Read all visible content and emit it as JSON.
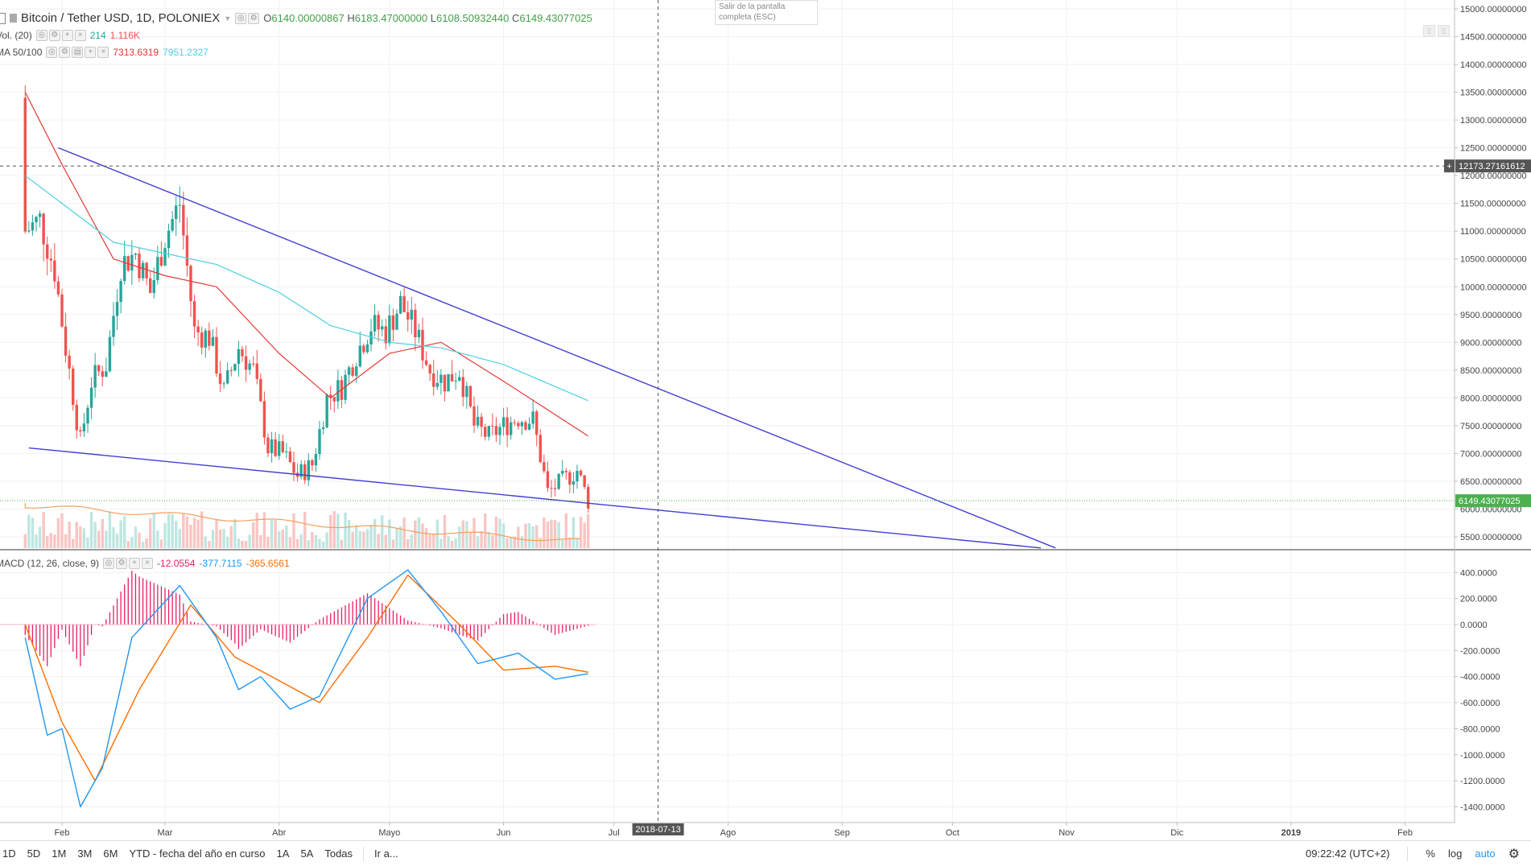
{
  "symbol": {
    "title": "Bitcoin / Tether USD, 1D, POLONIEX",
    "open_label": "O",
    "open": "6140.00000867",
    "high_label": "H",
    "high": "6183.47000000",
    "low_label": "L",
    "low": "6108.50932440",
    "close_label": "C",
    "close": "6149.43077025"
  },
  "volume_legend": {
    "name": "Vol. (20)",
    "v1": "214",
    "v2": "1.116K"
  },
  "ma_legend": {
    "name": "MA 50/100",
    "v1": "7313.6319",
    "v2": "7951.2327"
  },
  "macd_legend": {
    "name": "MACD (12, 26, close, 9)",
    "v1": "-12.0554",
    "v2": "-377.7115",
    "v3": "-365.6561"
  },
  "tooltip": {
    "line1": "Salir de la pantalla",
    "line2": "completa (ESC)"
  },
  "crosshair": {
    "price_label": "12173.27161612",
    "date_label": "2018-07-13"
  },
  "last_price_label": "6149.43077025",
  "colors": {
    "up": "#26a69a",
    "down": "#ef5350",
    "ma50": "#e53935",
    "ma100": "#4dd0e1",
    "trendline": "#3f3fd4",
    "macd": "#2196f3",
    "signal": "#ff6d00",
    "hist": "#e91e63",
    "crosshair": "#555555",
    "last_price": "#4caf50"
  },
  "bottom_bar": {
    "ranges": [
      "1D",
      "5D",
      "1M",
      "3M",
      "6M",
      "YTD - fecha del año en curso",
      "1A",
      "5A",
      "Todas"
    ],
    "goto": "Ir a...",
    "time": "09:22:42 (UTC+2)",
    "percent": "%",
    "log": "log",
    "auto": "auto",
    "settings_icon": "gear-icon"
  },
  "chart_data": {
    "type": "candlestick",
    "title": "Bitcoin / Tether USD, 1D, POLONIEX",
    "xlabel": "",
    "ylabel": "",
    "x_tick_labels": [
      "Feb",
      "Mar",
      "Abr",
      "Mayo",
      "Jun",
      "Jul",
      "Ago",
      "Sep",
      "Oct",
      "Nov",
      "Dic",
      "2019",
      "Feb"
    ],
    "price_axis": {
      "ylim": [
        5300,
        15100
      ],
      "tick_labels": [
        "15000.00000000",
        "14500.00000000",
        "14000.00000000",
        "13500.00000000",
        "13000.00000000",
        "12500.00000000",
        "12000.00000000",
        "11500.00000000",
        "11000.00000000",
        "10500.00000000",
        "10000.00000000",
        "9500.00000000",
        "9000.00000000",
        "8500.00000000",
        "8000.00000000",
        "7500.00000000",
        "7000.00000000",
        "6500.00000000",
        "6000.00000000",
        "5500.00000000"
      ]
    },
    "macd_axis": {
      "ylim": [
        -1480,
        480
      ],
      "tick_labels": [
        "400.0000",
        "200.0000",
        "0.0000",
        "-200.0000",
        "-400.0000",
        "-600.0000",
        "-800.0000",
        "-1000.0000",
        "-1200.0000",
        "-1400.0000"
      ]
    },
    "close_series": [
      {
        "date": "2018-01-22",
        "close": 11000
      },
      {
        "date": "2018-01-26",
        "close": 11200
      },
      {
        "date": "2018-01-30",
        "close": 10300
      },
      {
        "date": "2018-02-02",
        "close": 8900
      },
      {
        "date": "2018-02-06",
        "close": 7200
      },
      {
        "date": "2018-02-09",
        "close": 8300
      },
      {
        "date": "2018-02-13",
        "close": 8600
      },
      {
        "date": "2018-02-17",
        "close": 10400
      },
      {
        "date": "2018-02-21",
        "close": 10600
      },
      {
        "date": "2018-02-25",
        "close": 9900
      },
      {
        "date": "2018-03-01",
        "close": 10900
      },
      {
        "date": "2018-03-05",
        "close": 11500
      },
      {
        "date": "2018-03-09",
        "close": 9200
      },
      {
        "date": "2018-03-13",
        "close": 9100
      },
      {
        "date": "2018-03-17",
        "close": 8100
      },
      {
        "date": "2018-03-21",
        "close": 8900
      },
      {
        "date": "2018-03-25",
        "close": 8500
      },
      {
        "date": "2018-03-29",
        "close": 7100
      },
      {
        "date": "2018-04-02",
        "close": 7000
      },
      {
        "date": "2018-04-06",
        "close": 6600
      },
      {
        "date": "2018-04-10",
        "close": 6800
      },
      {
        "date": "2018-04-14",
        "close": 8000
      },
      {
        "date": "2018-04-18",
        "close": 8200
      },
      {
        "date": "2018-04-22",
        "close": 8800
      },
      {
        "date": "2018-04-26",
        "close": 9300
      },
      {
        "date": "2018-04-30",
        "close": 9200
      },
      {
        "date": "2018-05-04",
        "close": 9700
      },
      {
        "date": "2018-05-08",
        "close": 9200
      },
      {
        "date": "2018-05-12",
        "close": 8500
      },
      {
        "date": "2018-05-16",
        "close": 8300
      },
      {
        "date": "2018-05-20",
        "close": 8500
      },
      {
        "date": "2018-05-24",
        "close": 7500
      },
      {
        "date": "2018-05-28",
        "close": 7300
      },
      {
        "date": "2018-06-01",
        "close": 7500
      },
      {
        "date": "2018-06-05",
        "close": 7650
      },
      {
        "date": "2018-06-09",
        "close": 7600
      },
      {
        "date": "2018-06-13",
        "close": 6300
      },
      {
        "date": "2018-06-17",
        "close": 6500
      },
      {
        "date": "2018-06-21",
        "close": 6700
      },
      {
        "date": "2018-06-24",
        "close": 6149
      }
    ],
    "ma50": [
      {
        "date": "2018-01-22",
        "value": 13500
      },
      {
        "date": "2018-02-01",
        "value": 12200
      },
      {
        "date": "2018-02-15",
        "value": 10500
      },
      {
        "date": "2018-03-01",
        "value": 10200
      },
      {
        "date": "2018-03-15",
        "value": 10000
      },
      {
        "date": "2018-04-01",
        "value": 8800
      },
      {
        "date": "2018-04-15",
        "value": 8000
      },
      {
        "date": "2018-05-01",
        "value": 8800
      },
      {
        "date": "2018-05-15",
        "value": 9000
      },
      {
        "date": "2018-06-01",
        "value": 8300
      },
      {
        "date": "2018-06-15",
        "value": 7700
      },
      {
        "date": "2018-06-24",
        "value": 7313
      }
    ],
    "ma100": [
      {
        "date": "2018-01-22",
        "value": 12000
      },
      {
        "date": "2018-02-15",
        "value": 10800
      },
      {
        "date": "2018-03-15",
        "value": 10400
      },
      {
        "date": "2018-04-01",
        "value": 9900
      },
      {
        "date": "2018-04-15",
        "value": 9300
      },
      {
        "date": "2018-05-01",
        "value": 9000
      },
      {
        "date": "2018-05-15",
        "value": 8900
      },
      {
        "date": "2018-06-01",
        "value": 8600
      },
      {
        "date": "2018-06-24",
        "value": 7951
      }
    ],
    "trendlines": [
      {
        "name": "upper",
        "from": {
          "date": "2018-01-31",
          "price": 12500
        },
        "to": {
          "date": "2018-10-29",
          "price": 5300
        }
      },
      {
        "name": "lower",
        "from": {
          "date": "2018-01-23",
          "price": 7100
        },
        "to": {
          "date": "2018-10-25",
          "price": 5300
        }
      }
    ],
    "macd_line": [
      {
        "date": "2018-01-22",
        "value": -100
      },
      {
        "date": "2018-01-28",
        "value": -850
      },
      {
        "date": "2018-02-01",
        "value": -800
      },
      {
        "date": "2018-02-06",
        "value": -1400
      },
      {
        "date": "2018-02-12",
        "value": -1100
      },
      {
        "date": "2018-02-20",
        "value": -100
      },
      {
        "date": "2018-03-05",
        "value": 300
      },
      {
        "date": "2018-03-15",
        "value": -100
      },
      {
        "date": "2018-03-21",
        "value": -500
      },
      {
        "date": "2018-03-27",
        "value": -400
      },
      {
        "date": "2018-04-04",
        "value": -650
      },
      {
        "date": "2018-04-12",
        "value": -550
      },
      {
        "date": "2018-04-25",
        "value": 200
      },
      {
        "date": "2018-05-06",
        "value": 420
      },
      {
        "date": "2018-05-15",
        "value": 100
      },
      {
        "date": "2018-05-25",
        "value": -300
      },
      {
        "date": "2018-06-05",
        "value": -220
      },
      {
        "date": "2018-06-15",
        "value": -420
      },
      {
        "date": "2018-06-24",
        "value": -378
      }
    ],
    "signal_line": [
      {
        "date": "2018-01-22",
        "value": 0
      },
      {
        "date": "2018-02-01",
        "value": -750
      },
      {
        "date": "2018-02-10",
        "value": -1200
      },
      {
        "date": "2018-02-22",
        "value": -500
      },
      {
        "date": "2018-03-08",
        "value": 150
      },
      {
        "date": "2018-03-20",
        "value": -250
      },
      {
        "date": "2018-03-30",
        "value": -400
      },
      {
        "date": "2018-04-12",
        "value": -600
      },
      {
        "date": "2018-04-25",
        "value": -100
      },
      {
        "date": "2018-05-06",
        "value": 380
      },
      {
        "date": "2018-05-20",
        "value": 0
      },
      {
        "date": "2018-06-01",
        "value": -350
      },
      {
        "date": "2018-06-15",
        "value": -320
      },
      {
        "date": "2018-06-24",
        "value": -366
      }
    ],
    "grid": true,
    "legend": "top-left"
  }
}
